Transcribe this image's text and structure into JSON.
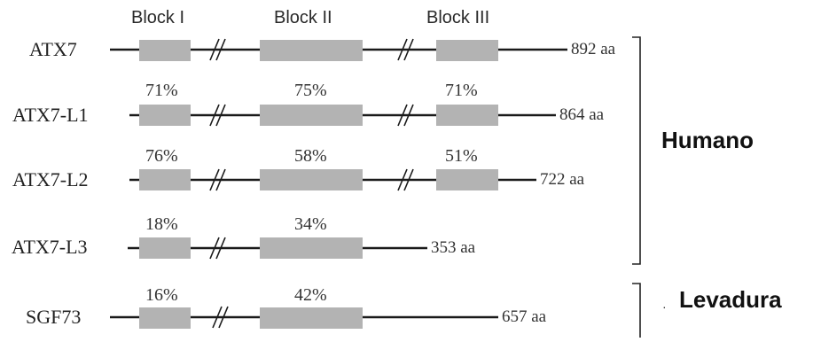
{
  "blocks": [
    {
      "label": "Block I"
    },
    {
      "label": "Block II"
    },
    {
      "label": "Block III"
    }
  ],
  "proteins": [
    {
      "name": "ATX7",
      "length": "892 aa",
      "identity": [
        "",
        "",
        ""
      ]
    },
    {
      "name": "ATX7-L1",
      "length": "864 aa",
      "identity": [
        "71%",
        "75%",
        "71%"
      ]
    },
    {
      "name": "ATX7-L2",
      "length": "722 aa",
      "identity": [
        "76%",
        "58%",
        "51%"
      ]
    },
    {
      "name": "ATX7-L3",
      "length": "353 aa",
      "identity": [
        "18%",
        "34%"
      ]
    },
    {
      "name": "SGF73",
      "length": "657 aa",
      "identity": [
        "16%",
        "42%"
      ]
    }
  ],
  "groups": {
    "human": "Humano",
    "yeast": "Levadura"
  },
  "colors": {
    "block_fill": "#b3b3b3",
    "line": "#1a1a1a"
  }
}
